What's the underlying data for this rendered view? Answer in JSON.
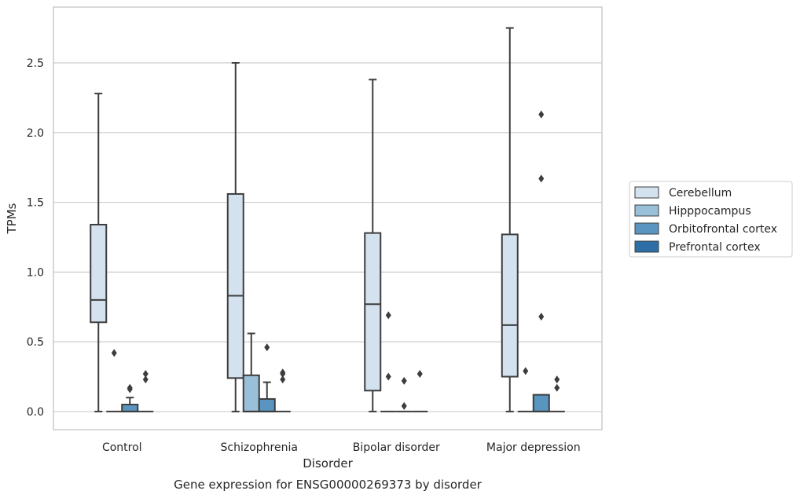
{
  "caption": "Gene expression for ENSG00000269373 by disorder",
  "chart_data": {
    "type": "box",
    "xlabel": "Disorder",
    "ylabel": "TPMs",
    "ylim": [
      -0.13,
      2.9
    ],
    "yticks": [
      "0.0",
      "0.5",
      "1.0",
      "1.5",
      "2.0",
      "2.5"
    ],
    "ytick_values": [
      0,
      0.5,
      1.0,
      1.5,
      2.0,
      2.5
    ],
    "grid": "horizontal",
    "legend_position": "right",
    "categories": [
      "Control",
      "Schizophrenia",
      "Bipolar disorder",
      "Major depression"
    ],
    "series": [
      {
        "name": "Cerebellum",
        "color": "#d4e2ef",
        "boxes": [
          {
            "whislo": 0,
            "q1": 0.64,
            "med": 0.8,
            "q3": 1.34,
            "whishi": 2.28,
            "fliers": []
          },
          {
            "whislo": 0,
            "q1": 0.24,
            "med": 0.83,
            "q3": 1.56,
            "whishi": 2.5,
            "fliers": []
          },
          {
            "whislo": 0,
            "q1": 0.15,
            "med": 0.77,
            "q3": 1.28,
            "whishi": 2.38,
            "fliers": []
          },
          {
            "whislo": 0,
            "q1": 0.25,
            "med": 0.62,
            "q3": 1.27,
            "whishi": 2.75,
            "fliers": []
          }
        ]
      },
      {
        "name": "Hipppocampus",
        "color": "#9ac0d9",
        "boxes": [
          {
            "whislo": 0,
            "q1": 0,
            "med": 0,
            "q3": 0,
            "whishi": 0,
            "fliers": [
              0.42
            ]
          },
          {
            "whislo": 0,
            "q1": 0,
            "med": 0,
            "q3": 0.26,
            "whishi": 0.56,
            "fliers": []
          },
          {
            "whislo": 0,
            "q1": 0,
            "med": 0,
            "q3": 0,
            "whishi": 0,
            "fliers": [
              0.69,
              0.25
            ]
          },
          {
            "whislo": 0,
            "q1": 0,
            "med": 0,
            "q3": 0,
            "whishi": 0,
            "fliers": [
              0.29
            ]
          }
        ]
      },
      {
        "name": "Orbitofrontal cortex",
        "color": "#5a95c1",
        "boxes": [
          {
            "whislo": 0,
            "q1": 0,
            "med": 0,
            "q3": 0.05,
            "whishi": 0.1,
            "fliers": [
              0.17,
              0.16
            ]
          },
          {
            "whislo": 0,
            "q1": 0,
            "med": 0,
            "q3": 0.09,
            "whishi": 0.21,
            "fliers": [
              0.46
            ]
          },
          {
            "whislo": 0,
            "q1": 0,
            "med": 0,
            "q3": 0,
            "whishi": 0,
            "fliers": [
              0.22,
              0.04
            ]
          },
          {
            "whislo": 0,
            "q1": 0,
            "med": 0,
            "q3": 0.12,
            "whishi": 0.12,
            "fliers": [
              2.13,
              1.67,
              0.68
            ]
          }
        ]
      },
      {
        "name": "Prefrontal cortex",
        "color": "#2e6ea6",
        "boxes": [
          {
            "whislo": 0,
            "q1": 0,
            "med": 0,
            "q3": 0,
            "whishi": 0,
            "fliers": [
              0.27,
              0.23
            ]
          },
          {
            "whislo": 0,
            "q1": 0,
            "med": 0,
            "q3": 0,
            "whishi": 0,
            "fliers": [
              0.28,
              0.27,
              0.23
            ]
          },
          {
            "whislo": 0,
            "q1": 0,
            "med": 0,
            "q3": 0,
            "whishi": 0,
            "fliers": [
              0.27
            ]
          },
          {
            "whislo": 0,
            "q1": 0,
            "med": 0,
            "q3": 0,
            "whishi": 0,
            "fliers": [
              0.23,
              0.17
            ]
          }
        ]
      }
    ]
  }
}
